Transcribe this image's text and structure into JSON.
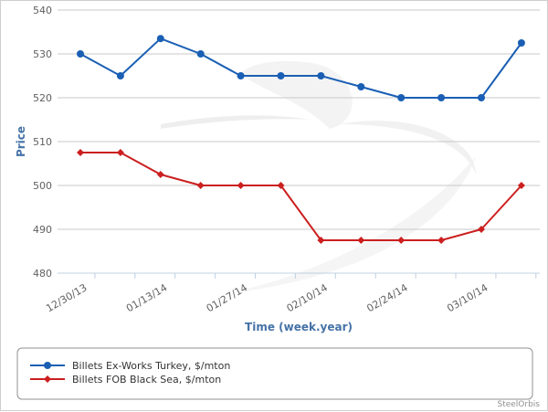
{
  "chart_data": {
    "type": "line",
    "title": "",
    "xlabel": "Time (week.year)",
    "ylabel": "Price",
    "ylim": [
      480,
      540
    ],
    "y_ticks": [
      480,
      490,
      500,
      510,
      520,
      530,
      540
    ],
    "x_tick_labels": [
      "12/30/13",
      "01/13/14",
      "01/27/14",
      "02/10/14",
      "02/24/14",
      "03/10/14"
    ],
    "x_tick_at_point_index": [
      0,
      2,
      4,
      6,
      8,
      10
    ],
    "grid": true,
    "legend_position": "bottom",
    "series": [
      {
        "name": "Billets Ex-Works Turkey, $/mton",
        "color": "#1a5fb4",
        "marker": "circle",
        "values": [
          530,
          525,
          533.5,
          530,
          525,
          525,
          525,
          522.5,
          520,
          520,
          520,
          532.5
        ]
      },
      {
        "name": "Billets FOB Black Sea, $/mton",
        "color": "#cc1f1f",
        "marker": "diamond",
        "values": [
          507.5,
          507.5,
          502.5,
          500,
          500,
          500,
          487.5,
          487.5,
          487.5,
          487.5,
          490,
          500
        ]
      }
    ]
  },
  "credit": "SteelOrbis"
}
